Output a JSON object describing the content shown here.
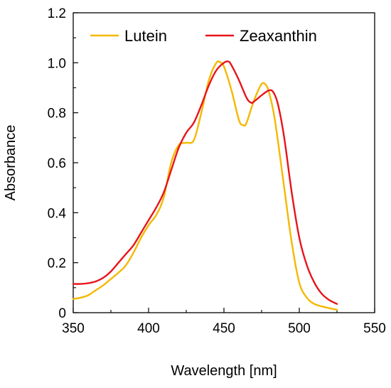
{
  "chart_data": {
    "type": "line",
    "title": "",
    "xlabel": "Wavelength [nm]",
    "ylabel": "Absorbance",
    "xlim": [
      350,
      550
    ],
    "ylim": [
      0,
      1.2
    ],
    "x_ticks": [
      "350",
      "400",
      "450",
      "500",
      "550"
    ],
    "y_ticks": [
      "0",
      "0.2",
      "0.4",
      "0.6",
      "0.8",
      "1.0",
      "1.2"
    ],
    "grid": false,
    "legend_position": "top",
    "series": [
      {
        "name": "Lutein",
        "color": "#F5B800",
        "x": [
          350,
          355,
          360,
          365,
          370,
          375,
          380,
          385,
          390,
          395,
          400,
          405,
          410,
          415,
          420,
          425,
          430,
          435,
          440,
          445,
          448,
          450,
          455,
          460,
          463,
          465,
          470,
          475,
          478,
          480,
          483,
          486,
          490,
          495,
          500,
          505,
          510,
          515,
          520,
          525
        ],
        "y": [
          0.055,
          0.06,
          0.07,
          0.09,
          0.11,
          0.135,
          0.16,
          0.19,
          0.24,
          0.3,
          0.35,
          0.39,
          0.46,
          0.6,
          0.67,
          0.68,
          0.69,
          0.8,
          0.93,
          1.0,
          1.0,
          0.985,
          0.89,
          0.77,
          0.75,
          0.76,
          0.85,
          0.915,
          0.91,
          0.88,
          0.8,
          0.68,
          0.5,
          0.28,
          0.12,
          0.06,
          0.035,
          0.025,
          0.018,
          0.012
        ]
      },
      {
        "name": "Zeaxanthin",
        "color": "#E8141A",
        "x": [
          350,
          355,
          360,
          365,
          370,
          375,
          380,
          385,
          390,
          395,
          400,
          405,
          410,
          415,
          420,
          425,
          430,
          435,
          440,
          445,
          450,
          453,
          455,
          460,
          465,
          468,
          470,
          475,
          480,
          483,
          486,
          490,
          495,
          500,
          505,
          510,
          515,
          520,
          525
        ],
        "y": [
          0.115,
          0.115,
          0.118,
          0.125,
          0.14,
          0.165,
          0.2,
          0.235,
          0.27,
          0.32,
          0.37,
          0.42,
          0.48,
          0.57,
          0.66,
          0.72,
          0.76,
          0.83,
          0.91,
          0.97,
          1.0,
          1.005,
          0.99,
          0.93,
          0.86,
          0.84,
          0.845,
          0.87,
          0.89,
          0.88,
          0.83,
          0.7,
          0.48,
          0.3,
          0.19,
          0.12,
          0.075,
          0.05,
          0.035
        ]
      }
    ]
  }
}
